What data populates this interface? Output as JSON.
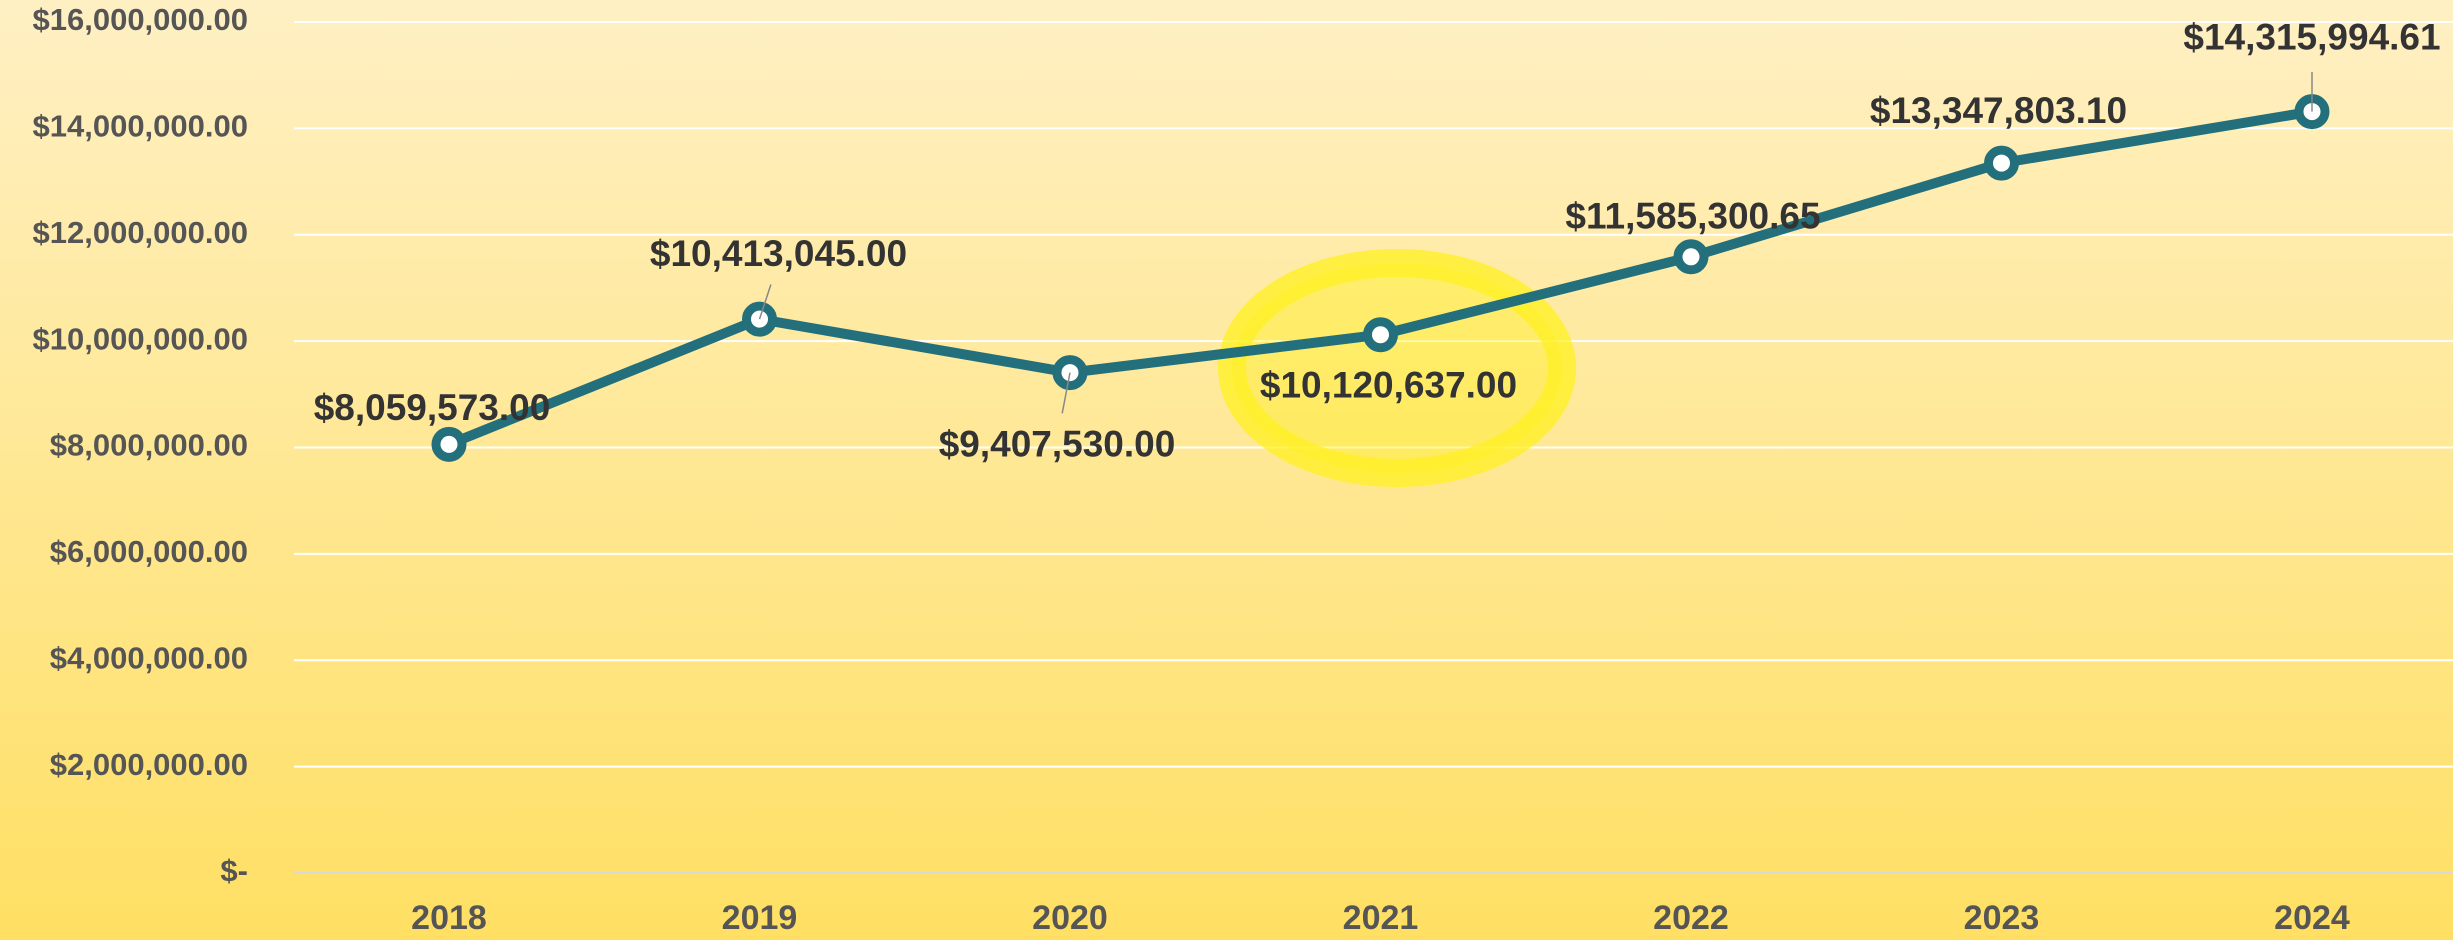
{
  "chart_data": {
    "type": "line",
    "categories": [
      "2018",
      "2019",
      "2020",
      "2021",
      "2022",
      "2023",
      "2024"
    ],
    "series": [
      {
        "color": "#23707c",
        "values": [
          8059573.0,
          10413045.0,
          9407530.0,
          10120637.0,
          11585300.65,
          13347803.1,
          14315994.61
        ],
        "value_labels": [
          "$8,059,573.00",
          "$10,413,045.00",
          "$9,407,530.00",
          "$10,120,637.00",
          "$11,585,300.65",
          "$13,347,803.10",
          "$14,315,994.61"
        ]
      }
    ],
    "ylim": [
      0,
      16000000
    ],
    "yticks": [
      {
        "value": 0,
        "label": "$-"
      },
      {
        "value": 2000000,
        "label": "$2,000,000.00"
      },
      {
        "value": 4000000,
        "label": "$4,000,000.00"
      },
      {
        "value": 6000000,
        "label": "$6,000,000.00"
      },
      {
        "value": 8000000,
        "label": "$8,000,000.00"
      },
      {
        "value": 10000000,
        "label": "$10,000,000.00"
      },
      {
        "value": 12000000,
        "label": "$12,000,000.00"
      },
      {
        "value": 14000000,
        "label": "$14,000,000.00"
      },
      {
        "value": 16000000,
        "label": "$16,000,000.00"
      }
    ],
    "grid": true
  }
}
